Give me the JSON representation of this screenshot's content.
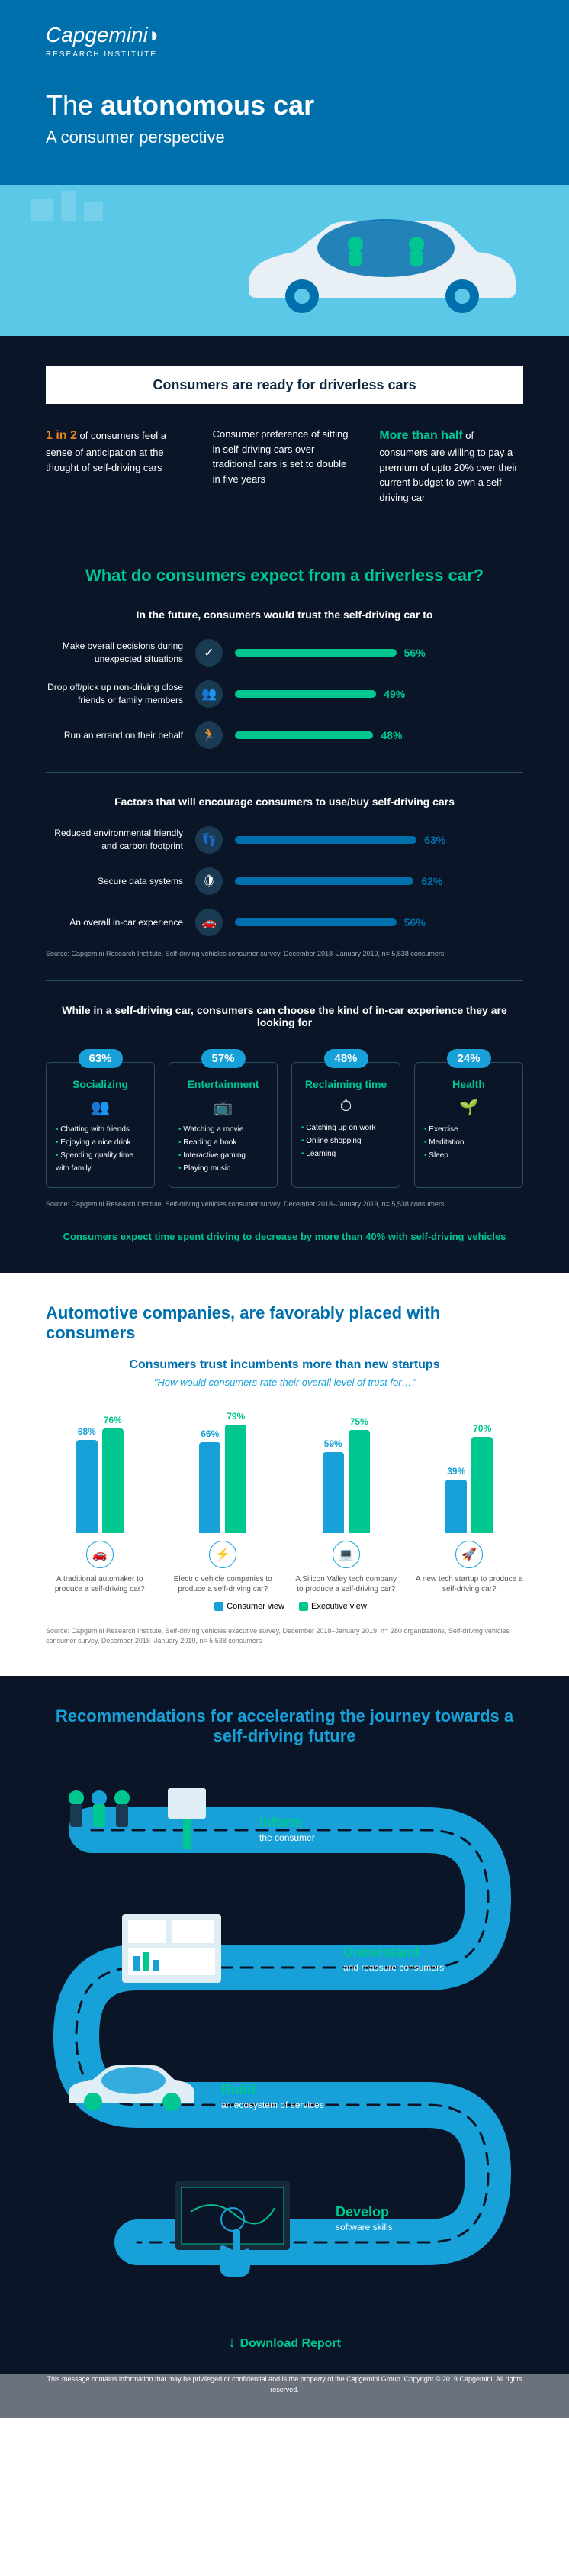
{
  "brand": {
    "name": "Capgemini",
    "sub": "RESEARCH INSTITUTE"
  },
  "hero": {
    "title_pre": "The ",
    "title_bold": "autonomous car",
    "subtitle": "A consumer perspective"
  },
  "s1": {
    "banner": "Consumers are ready for driverless cars",
    "facts": [
      {
        "b": "1 in 2",
        "t": " of consumers feel a sense of anticipation at the thought of self-driving cars"
      },
      {
        "b": "",
        "t": "Consumer preference of sitting in self-driving cars over traditional cars is set to double in five years"
      },
      {
        "b": "More than half",
        "t": " of consumers are willing to pay a premium of upto 20% over their current budget to own a self-driving car"
      }
    ]
  },
  "s2": {
    "title": "What do consumers expect from a driverless car?",
    "sub1": "In the future, consumers would trust the self-driving car to",
    "bars1": [
      {
        "lbl": "Make overall decisions during unexpected situations",
        "v": 56
      },
      {
        "lbl": "Drop off/pick up non-driving close friends or family members",
        "v": 49
      },
      {
        "lbl": "Run an errand on their behalf",
        "v": 48
      }
    ],
    "sub2": "Factors that will encourage consumers to use/buy self-driving cars",
    "bars2": [
      {
        "lbl": "Reduced environmental friendly and carbon footprint",
        "v": 63
      },
      {
        "lbl": "Secure data systems",
        "v": 62
      },
      {
        "lbl": "An overall in-car experience",
        "v": 56
      }
    ],
    "src": "Source: Capgemini Research Institute, Self-driving vehicles consumer survey, December 2018–January 2019, n= 5,538 consumers",
    "sub3": "While in a self-driving car, consumers can choose the kind of in-car experience they are looking for",
    "acts": [
      {
        "p": "63%",
        "t": "Socializing",
        "items": [
          "Chatting with friends",
          "Enjoying a nice drink",
          "Spending quality time with family"
        ]
      },
      {
        "p": "57%",
        "t": "Entertainment",
        "items": [
          "Watching a movie",
          "Reading a book",
          "Interactive gaming",
          "Playing music"
        ]
      },
      {
        "p": "48%",
        "t": "Reclaiming time",
        "items": [
          "Catching up on work",
          "Online shopping",
          "Learning"
        ]
      },
      {
        "p": "24%",
        "t": "Health",
        "items": [
          "Exercise",
          "Meditation",
          "Sleep"
        ]
      }
    ],
    "expect": "Consumers expect time spent driving to decrease by more than 40% with self-driving vehicles"
  },
  "s3": {
    "title": "Automotive companies, are favorably placed with consumers",
    "sub": "Consumers trust incumbents more than new startups",
    "q": "\"How would consumers rate their overall level of trust for…\"",
    "items": [
      {
        "c": 68,
        "e": 76,
        "lbl": "A traditional automaker to produce a self-driving car?"
      },
      {
        "c": 66,
        "e": 79,
        "lbl": "Electric vehicle companies to produce a self-driving car?"
      },
      {
        "c": 59,
        "e": 75,
        "lbl": "A Silicon Valley tech company to produce a self-driving car?"
      },
      {
        "c": 39,
        "e": 70,
        "lbl": "A new tech startup to produce a self-driving car?"
      }
    ],
    "leg": {
      "c": "Consumer view",
      "e": "Executive view"
    },
    "src": "Source: Capgemini Research Institute, Self-driving vehicles executive survey, December 2018–January 2019, n= 280 organizations, Self-driving vehicles consumer survey, December 2018–January 2019, n= 5,538 consumers"
  },
  "s4": {
    "title": "Recommendations for accelerating the journey towards a self-driving future",
    "steps": [
      {
        "h": "Inform",
        "p": "the consumer"
      },
      {
        "h": "Understand",
        "p": "and reassure consumers"
      },
      {
        "h": "Build",
        "p": "an ecosystem of services"
      },
      {
        "h": "Develop",
        "p": "software skills"
      }
    ]
  },
  "dl": "Download Report",
  "foot": "This message contains information that may be privileged or confidential and is the property of the Capgemini Group. Copyright © 2019 Capgemini. All rights reserved."
}
